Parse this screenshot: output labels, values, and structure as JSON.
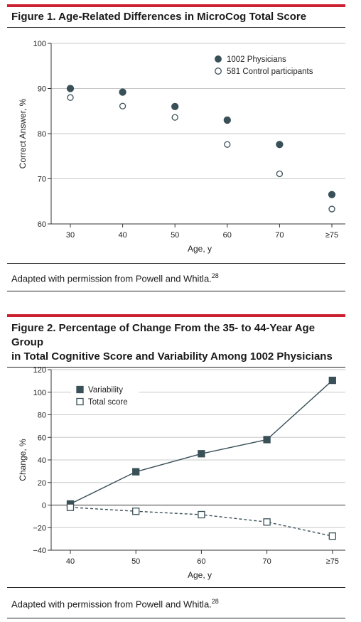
{
  "figure1": {
    "title": "Figure 1. Age-Related Differences in MicroCog Total Score",
    "caption": "Adapted with permission from Powell and Whitla.",
    "caption_ref": "28",
    "chart_data": {
      "type": "scatter",
      "title": "Figure 1. Age-Related Differences in MicroCog Total Score",
      "xlabel": "Age, y",
      "ylabel": "Correct Answer, %",
      "categories": [
        "30",
        "40",
        "50",
        "60",
        "70",
        "≥75"
      ],
      "ylim": [
        60,
        100
      ],
      "yticks": [
        60,
        70,
        80,
        90,
        100
      ],
      "grid": "horizontal",
      "legend_position": "top-right",
      "series": [
        {
          "name": "1002 Physicians",
          "marker": "filled-circle",
          "values": [
            90,
            89.2,
            86,
            83,
            77.6,
            66.5
          ]
        },
        {
          "name": "581 Control participants",
          "marker": "open-circle",
          "values": [
            88,
            86.1,
            83.6,
            77.6,
            71.1,
            63.3
          ]
        }
      ]
    }
  },
  "figure2": {
    "title_line1": "Figure 2. Percentage of Change From the 35- to 44-Year Age Group",
    "title_line2": "in Total Cognitive Score and Variability Among 1002 Physicians",
    "caption": "Adapted with permission from Powell and Whitla.",
    "caption_ref": "28",
    "chart_data": {
      "type": "line",
      "xlabel": "Age, y",
      "ylabel": "Change, %",
      "categories": [
        "40",
        "50",
        "60",
        "70",
        "≥75"
      ],
      "ylim": [
        -40,
        120
      ],
      "yticks": [
        -40,
        -20,
        0,
        20,
        40,
        60,
        80,
        100,
        120
      ],
      "grid": "horizontal",
      "legend_position": "top-left",
      "series": [
        {
          "name": "Variability",
          "marker": "filled-square",
          "line": "solid",
          "values": [
            1,
            29.5,
            45.5,
            58,
            110.5
          ]
        },
        {
          "name": "Total score",
          "marker": "open-square",
          "line": "dashed",
          "values": [
            -2,
            -5.5,
            -8.5,
            -15,
            -27.5
          ]
        }
      ]
    }
  },
  "colors": {
    "accent_red": "#cc2131",
    "series_dark": "#3a5058",
    "grid": "#c8c8c8",
    "text": "#1a1a1a"
  }
}
